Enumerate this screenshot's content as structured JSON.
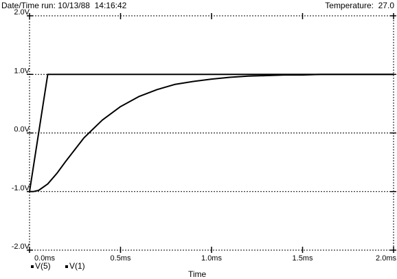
{
  "header": {
    "left_text": "Date/Time run: 10/13/88  14:16:42",
    "right_text": "Temperature:  27.0"
  },
  "chart_data": {
    "type": "line",
    "xlabel": "Time",
    "ylabel": "",
    "xlim": [
      0,
      2.0
    ],
    "ylim": [
      -2.0,
      2.0
    ],
    "x_ticks": [
      0,
      0.5,
      1.0,
      1.5,
      2.0
    ],
    "x_tick_labels": [
      "0.0ms",
      "0.5ms",
      "1.0ms",
      "1.5ms",
      "2.0ms"
    ],
    "y_ticks": [
      -2.0,
      -1.0,
      0.0,
      1.0,
      2.0
    ],
    "y_tick_labels": [
      "-2.0V",
      "-1.0V",
      "0.0V",
      "1.0V",
      "2.0V"
    ],
    "grid": "dotted",
    "legend_position": "bottom-left",
    "series": [
      {
        "name": "V(5)",
        "x": [
          0,
          0.02,
          0.05,
          0.1,
          0.15,
          0.2,
          0.3,
          0.4,
          0.5,
          0.6,
          0.7,
          0.8,
          0.9,
          1.0,
          1.1,
          1.2,
          1.3,
          1.4,
          1.5,
          1.6,
          1.7,
          1.8,
          1.9,
          2.0
        ],
        "values": [
          -1.0,
          -1.0,
          -0.98,
          -0.87,
          -0.69,
          -0.48,
          -0.08,
          0.22,
          0.45,
          0.62,
          0.74,
          0.83,
          0.88,
          0.92,
          0.95,
          0.97,
          0.98,
          0.99,
          0.99,
          1.0,
          1.0,
          1.0,
          1.0,
          1.0
        ]
      },
      {
        "name": "V(1)",
        "x": [
          0,
          0.1,
          0.5,
          1.0,
          1.5,
          2.0
        ],
        "values": [
          -1.0,
          1.0,
          1.0,
          1.0,
          1.0,
          1.0
        ]
      }
    ]
  }
}
